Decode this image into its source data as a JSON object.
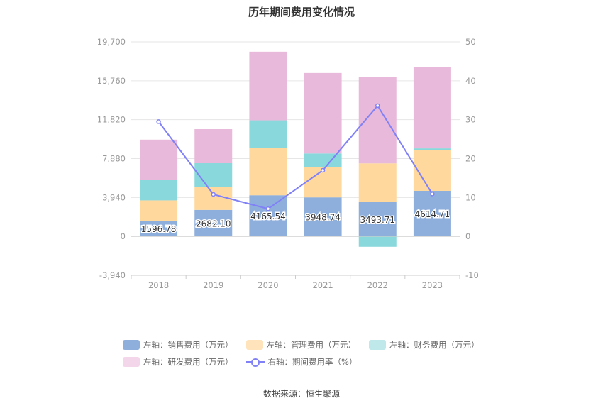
{
  "chart_data": {
    "type": "bar",
    "title": "历年期间费用变化情况",
    "categories": [
      "2018",
      "2019",
      "2020",
      "2021",
      "2022",
      "2023"
    ],
    "left_axis": {
      "min": -3940,
      "max": 19700,
      "ticks": [
        -3940,
        0,
        3940,
        7880,
        11820,
        15760,
        19700
      ],
      "tick_labels": [
        "-3,940",
        "0",
        "3,940",
        "7,880",
        "11,820",
        "15,760",
        "19,700"
      ]
    },
    "right_axis": {
      "min": -10,
      "max": 50,
      "ticks": [
        -10,
        0,
        10,
        20,
        30,
        40,
        50
      ],
      "tick_labels": [
        "-10",
        "0",
        "10",
        "20",
        "30",
        "40",
        "50"
      ]
    },
    "stacked": true,
    "grid": true,
    "series": [
      {
        "name": "左轴：销售费用（万元）",
        "axis": "left",
        "kind": "bar",
        "color": "#8eaedb",
        "values": [
          1596.78,
          2682.1,
          4165.54,
          3948.74,
          3493.71,
          4614.71
        ],
        "labels": [
          "1596.78",
          "2682.10",
          "4165.54",
          "3948.74",
          "3493.71",
          "4614.71"
        ]
      },
      {
        "name": "左轴：管理费用（万元）",
        "axis": "left",
        "kind": "bar",
        "color": "#fed89c",
        "values": [
          2050,
          2350,
          4800,
          3050,
          3900,
          4100
        ]
      },
      {
        "name": "左轴：财务费用（万元）",
        "axis": "left",
        "kind": "bar",
        "color": "#88d8dc",
        "values": [
          2050,
          2380,
          2790,
          1400,
          -1050,
          200
        ]
      },
      {
        "name": "左轴：研发费用（万元）",
        "axis": "left",
        "kind": "bar",
        "color": "#e8b9da",
        "values": [
          4100,
          3450,
          6950,
          8150,
          8750,
          8250
        ]
      },
      {
        "name": "右轴：期间费用率（%）",
        "axis": "right",
        "kind": "line",
        "color": "#8181f7",
        "values": [
          29.5,
          10.8,
          7.1,
          17.0,
          33.6,
          10.9
        ]
      }
    ],
    "legend_position": "bottom"
  },
  "legend": [
    {
      "label": "左轴：销售费用（万元）",
      "color": "#8eaedb",
      "kind": "bar"
    },
    {
      "label": "左轴：管理费用（万元）",
      "color": "#fee3bb",
      "kind": "bar"
    },
    {
      "label": "左轴：财务费用（万元）",
      "color": "#bfe8ea",
      "kind": "bar"
    },
    {
      "label": "左轴：研发费用（万元）",
      "color": "#f3d6ea",
      "kind": "bar"
    },
    {
      "label": "右轴：期间费用率（%）",
      "color": "#8181f7",
      "kind": "line"
    }
  ],
  "source": "数据来源：恒生聚源"
}
